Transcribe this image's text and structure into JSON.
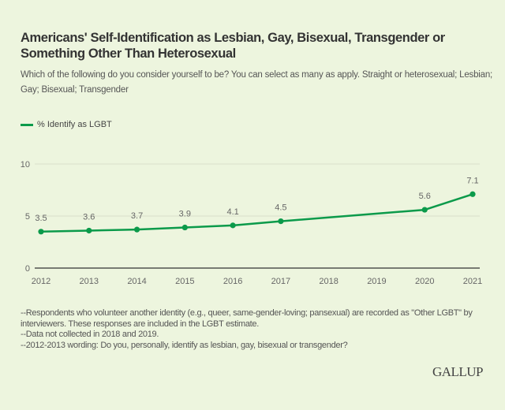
{
  "title": "Americans' Self-Identification as Lesbian, Gay, Bisexual, Transgender or Something Other Than Heterosexual",
  "subtitle": "Which of the following do you consider yourself to be? You can select as many as apply. Straight or heterosexual; Lesbian; Gay; Bisexual; Transgender",
  "footnotes": [
    "--Respondents who volunteer another identity (e.g., queer, same-gender-loving; pansexual) are recorded as \"Other LGBT\" by interviewers. These responses are included in the LGBT estimate.",
    "--Data not collected in 2018 and 2019.",
    "--2012-2013 wording: Do you, personally, identify as lesbian, gay, bisexual or transgender?"
  ],
  "logo": "GALLUP",
  "colors": {
    "line": "#0b9a4a",
    "background": "#edf5de"
  },
  "chart_data": {
    "type": "line",
    "title": "Americans' Self-Identification as Lesbian, Gay, Bisexual, Transgender or Something Other Than Heterosexual",
    "categories": [
      "2012",
      "2013",
      "2014",
      "2015",
      "2016",
      "2017",
      "2018",
      "2019",
      "2020",
      "2021"
    ],
    "series": [
      {
        "name": "% Identify as LGBT",
        "values": [
          3.5,
          3.6,
          3.7,
          3.9,
          4.1,
          4.5,
          null,
          null,
          5.6,
          7.1
        ]
      }
    ],
    "yticks": [
      0,
      5,
      10
    ],
    "ylim": [
      0,
      10
    ],
    "grid": true,
    "legend": "top-left",
    "xlabel": "",
    "ylabel": ""
  }
}
